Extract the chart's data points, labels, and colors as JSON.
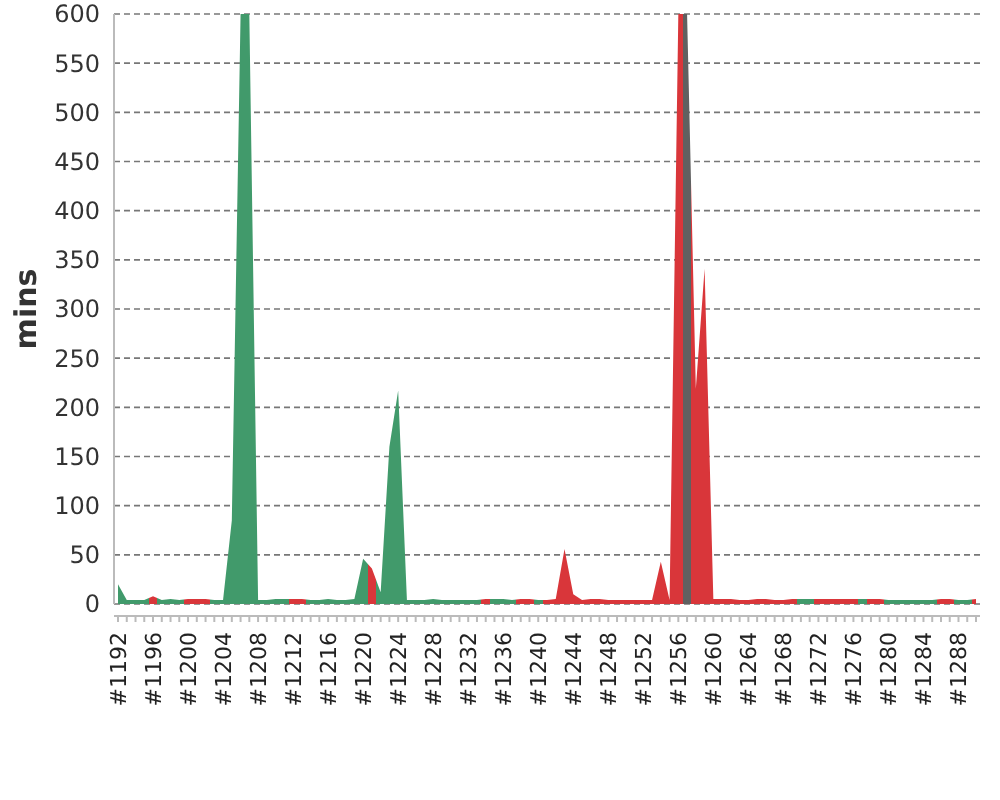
{
  "chart_data": {
    "type": "area",
    "ylabel": "mins",
    "grid": "y",
    "categories": [
      "#1192",
      null,
      null,
      null,
      "#1196",
      null,
      null,
      null,
      "#1200",
      null,
      null,
      null,
      "#1204",
      null,
      null,
      null,
      "#1208",
      null,
      null,
      null,
      "#1212",
      null,
      null,
      null,
      "#1216",
      null,
      null,
      null,
      "#1220",
      null,
      null,
      null,
      "#1224",
      null,
      null,
      null,
      "#1228",
      null,
      null,
      null,
      "#1232",
      null,
      null,
      null,
      "#1236",
      null,
      null,
      null,
      "#1240",
      null,
      null,
      null,
      "#1244",
      null,
      null,
      null,
      "#1248",
      null,
      null,
      null,
      "#1252",
      null,
      null,
      null,
      "#1256",
      null,
      null,
      null,
      "#1260",
      null,
      null,
      null,
      "#1264",
      null,
      null,
      null,
      "#1268",
      null,
      null,
      null,
      "#1272",
      null,
      null,
      null,
      "#1276",
      null,
      null,
      null,
      "#1280",
      null,
      null,
      null,
      "#1284",
      null,
      null,
      null,
      "#1288",
      null,
      null
    ],
    "ylim": [
      0,
      600
    ],
    "yticks": [
      0,
      50,
      100,
      150,
      200,
      250,
      300,
      350,
      400,
      450,
      500,
      550,
      600
    ],
    "values": [
      20,
      4,
      4,
      4,
      8,
      4,
      5,
      4,
      5,
      5,
      5,
      4,
      4,
      85,
      600,
      600,
      4,
      4,
      5,
      5,
      5,
      5,
      4,
      4,
      5,
      4,
      4,
      5,
      46,
      36,
      12,
      160,
      217,
      4,
      4,
      4,
      5,
      4,
      4,
      4,
      4,
      4,
      5,
      5,
      5,
      4,
      5,
      5,
      4,
      4,
      5,
      56,
      10,
      4,
      5,
      5,
      4,
      4,
      4,
      4,
      4,
      4,
      43,
      4,
      600,
      600,
      219,
      341,
      5,
      5,
      5,
      4,
      4,
      5,
      5,
      4,
      4,
      5,
      5,
      5,
      5,
      5,
      5,
      5,
      5,
      5,
      5,
      5,
      4,
      4,
      4,
      4,
      4,
      4,
      5,
      5,
      4,
      4,
      5
    ],
    "colors": [
      "#419a6b",
      "#419a6b",
      "#419a6b",
      "#419a6b",
      "#d9363a",
      "#419a6b",
      "#419a6b",
      "#419a6b",
      "#d9363a",
      "#d9363a",
      "#d9363a",
      "#419a6b",
      "#419a6b",
      "#419a6b",
      "#419a6b",
      "#419a6b",
      "#419a6b",
      "#419a6b",
      "#419a6b",
      "#419a6b",
      "#d9363a",
      "#d9363a",
      "#419a6b",
      "#419a6b",
      "#419a6b",
      "#419a6b",
      "#419a6b",
      "#419a6b",
      "#419a6b",
      "#d9363a",
      "#419a6b",
      "#419a6b",
      "#419a6b",
      "#419a6b",
      "#419a6b",
      "#419a6b",
      "#419a6b",
      "#419a6b",
      "#419a6b",
      "#419a6b",
      "#419a6b",
      "#419a6b",
      "#d9363a",
      "#419a6b",
      "#419a6b",
      "#419a6b",
      "#d9363a",
      "#d9363a",
      "#419a6b",
      "#d9363a",
      "#d9363a",
      "#d9363a",
      "#d9363a",
      "#d9363a",
      "#d9363a",
      "#d9363a",
      "#d9363a",
      "#d9363a",
      "#d9363a",
      "#d9363a",
      "#d9363a",
      "#d9363a",
      "#d9363a",
      "#d9363a",
      "#d9363a",
      "#606060",
      "#d9363a",
      "#d9363a",
      "#d9363a",
      "#d9363a",
      "#d9363a",
      "#d9363a",
      "#d9363a",
      "#d9363a",
      "#d9363a",
      "#d9363a",
      "#d9363a",
      "#d9363a",
      "#419a6b",
      "#419a6b",
      "#d9363a",
      "#d9363a",
      "#d9363a",
      "#d9363a",
      "#d9363a",
      "#419a6b",
      "#d9363a",
      "#d9363a",
      "#419a6b",
      "#419a6b",
      "#419a6b",
      "#419a6b",
      "#419a6b",
      "#419a6b",
      "#d9363a",
      "#d9363a",
      "#419a6b",
      "#419a6b",
      "#d9363a"
    ]
  }
}
